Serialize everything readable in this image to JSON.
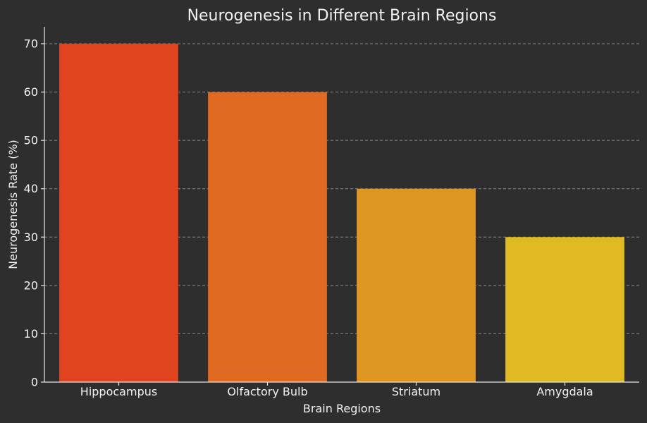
{
  "chart_data": {
    "type": "bar",
    "title": "Neurogenesis in Different Brain Regions",
    "xlabel": "Brain Regions",
    "ylabel": "Neurogenesis Rate (%)",
    "categories": [
      "Hippocampus",
      "Olfactory Bulb",
      "Striatum",
      "Amygdala"
    ],
    "values": [
      70,
      60,
      40,
      30
    ],
    "colors": [
      "#e0441f",
      "#e06a22",
      "#e09622",
      "#e0ba22"
    ],
    "ylim": [
      0,
      73.5
    ],
    "yticks": [
      0,
      10,
      20,
      30,
      40,
      50,
      60,
      70
    ],
    "grid": "y-dashed",
    "legend": "none",
    "background": "#2e2e2e"
  }
}
